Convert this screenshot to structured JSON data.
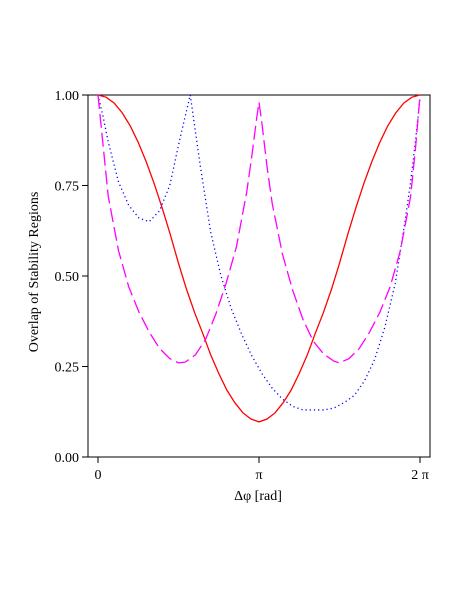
{
  "chart_data": {
    "type": "line",
    "title": "",
    "xlabel": "Δφ [rad]",
    "ylabel": "Overlap of Stability Regions",
    "xlim": [
      0,
      6.2832
    ],
    "ylim": [
      0,
      1.0
    ],
    "xticks": [
      {
        "value": 0,
        "label": "0"
      },
      {
        "value": 3.1416,
        "label": "π"
      },
      {
        "value": 6.2832,
        "label": "2 π"
      }
    ],
    "yticks": [
      {
        "value": 0,
        "label": "0.00"
      },
      {
        "value": 0.25,
        "label": "0.25"
      },
      {
        "value": 0.5,
        "label": "0.50"
      },
      {
        "value": 0.75,
        "label": "0.75"
      },
      {
        "value": 1.0,
        "label": "1.00"
      }
    ],
    "grid": false,
    "legend": "none",
    "series": [
      {
        "color": "#ff0000",
        "dash": "solid",
        "x": [
          0,
          0.1571,
          0.3142,
          0.4712,
          0.6283,
          0.7854,
          0.9425,
          1.0996,
          1.2566,
          1.4137,
          1.5708,
          1.7279,
          1.885,
          2.042,
          2.1991,
          2.3562,
          2.5133,
          2.6704,
          2.8274,
          2.9845,
          3.1416,
          3.2987,
          3.4558,
          3.6128,
          3.7699,
          3.927,
          4.0841,
          4.2412,
          4.3982,
          4.5553,
          4.7124,
          4.8695,
          5.0265,
          5.1836,
          5.3407,
          5.4978,
          5.6549,
          5.8119,
          5.969,
          6.1261,
          6.2832
        ],
        "y": [
          1.0,
          0.994,
          0.978,
          0.951,
          0.915,
          0.869,
          0.815,
          0.754,
          0.686,
          0.613,
          0.535,
          0.463,
          0.399,
          0.342,
          0.282,
          0.231,
          0.185,
          0.15,
          0.122,
          0.105,
          0.097,
          0.105,
          0.122,
          0.15,
          0.185,
          0.231,
          0.282,
          0.342,
          0.399,
          0.463,
          0.535,
          0.613,
          0.686,
          0.754,
          0.815,
          0.869,
          0.915,
          0.951,
          0.978,
          0.994,
          1.0
        ]
      },
      {
        "color": "#0000ff",
        "dash": "dotted",
        "x": [
          0,
          0.1,
          0.2,
          0.4,
          0.6,
          0.8,
          1.0,
          1.2,
          1.4,
          1.6,
          1.8,
          2.0,
          2.2,
          2.4,
          2.6,
          2.8,
          3.0,
          3.2,
          3.4,
          3.6,
          3.8,
          4.0,
          4.2,
          4.4,
          4.6,
          4.8,
          5.0,
          5.2,
          5.4,
          5.6,
          5.8,
          6.0,
          6.1,
          6.2,
          6.2832
        ],
        "y": [
          1.0,
          0.94,
          0.87,
          0.76,
          0.695,
          0.66,
          0.65,
          0.68,
          0.75,
          0.88,
          1.0,
          0.8,
          0.62,
          0.5,
          0.41,
          0.34,
          0.28,
          0.23,
          0.19,
          0.16,
          0.14,
          0.13,
          0.13,
          0.13,
          0.135,
          0.15,
          0.17,
          0.21,
          0.27,
          0.36,
          0.48,
          0.66,
          0.76,
          0.88,
          0.99
        ]
      },
      {
        "color": "#ff00ff",
        "dash": "dashed",
        "x": [
          0,
          0.1,
          0.2,
          0.4,
          0.6,
          0.8,
          1.0,
          1.2,
          1.4,
          1.571,
          1.7,
          1.9,
          2.1,
          2.3,
          2.5,
          2.7,
          2.9,
          3.0,
          3.1,
          3.1416,
          3.2,
          3.3,
          3.4,
          3.6,
          3.8,
          4.0,
          4.2,
          4.4,
          4.6,
          4.712,
          4.9,
          5.1,
          5.3,
          5.5,
          5.7,
          5.9,
          6.1,
          6.2,
          6.2832
        ],
        "y": [
          1.0,
          0.86,
          0.72,
          0.57,
          0.47,
          0.4,
          0.345,
          0.3,
          0.272,
          0.26,
          0.262,
          0.282,
          0.325,
          0.395,
          0.48,
          0.58,
          0.73,
          0.83,
          0.94,
          0.98,
          0.92,
          0.8,
          0.7,
          0.56,
          0.46,
          0.38,
          0.32,
          0.285,
          0.265,
          0.26,
          0.272,
          0.3,
          0.345,
          0.4,
          0.47,
          0.57,
          0.72,
          0.86,
          1.0
        ]
      }
    ]
  }
}
